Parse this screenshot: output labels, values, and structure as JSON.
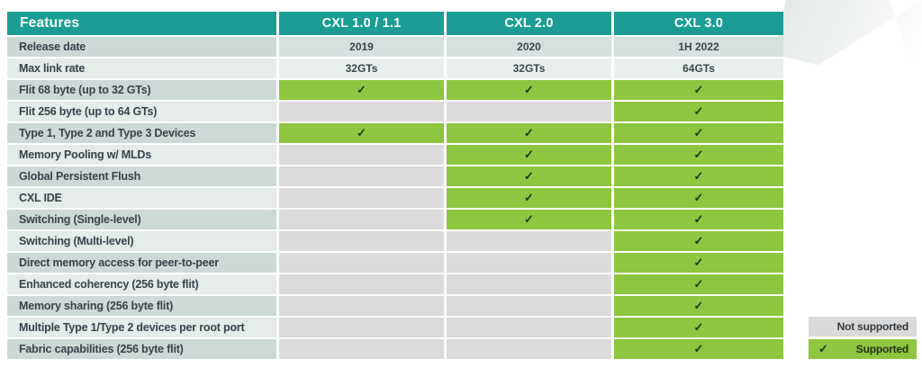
{
  "table": {
    "columns": [
      "Features",
      "CXL 1.0 / 1.1",
      "CXL 2.0",
      "CXL 3.0"
    ],
    "info_rows": [
      {
        "label": "Release date",
        "values": [
          "2019",
          "2020",
          "1H 2022"
        ]
      },
      {
        "label": "Max link rate",
        "values": [
          "32GTs",
          "32GTs",
          "64GTs"
        ]
      }
    ],
    "feature_rows": [
      {
        "label": "Flit 68 byte (up to 32 GTs)",
        "support": [
          true,
          true,
          true
        ]
      },
      {
        "label": "Flit 256 byte (up to 64 GTs)",
        "support": [
          false,
          false,
          true
        ]
      },
      {
        "label": "Type 1, Type 2 and Type 3 Devices",
        "support": [
          true,
          true,
          true
        ]
      },
      {
        "label": "Memory Pooling w/ MLDs",
        "support": [
          false,
          true,
          true
        ]
      },
      {
        "label": "Global Persistent Flush",
        "support": [
          false,
          true,
          true
        ]
      },
      {
        "label": "CXL IDE",
        "support": [
          false,
          true,
          true
        ]
      },
      {
        "label": "Switching (Single-level)",
        "support": [
          false,
          true,
          true
        ]
      },
      {
        "label": "Switching (Multi-level)",
        "support": [
          false,
          false,
          true
        ]
      },
      {
        "label": "Direct memory access for peer-to-peer",
        "support": [
          false,
          false,
          true
        ]
      },
      {
        "label": "Enhanced coherency (256 byte flit)",
        "support": [
          false,
          false,
          true
        ]
      },
      {
        "label": "Memory sharing (256 byte flit)",
        "support": [
          false,
          false,
          true
        ]
      },
      {
        "label": "Multiple Type 1/Type 2 devices per root port",
        "support": [
          false,
          false,
          true
        ]
      },
      {
        "label": "Fabric capabilities (256 byte flit)",
        "support": [
          false,
          false,
          true
        ]
      }
    ]
  },
  "glyphs": {
    "check": "✓"
  },
  "legend": {
    "not_supported": "Not supported",
    "supported": "Supported"
  },
  "colors": {
    "header_teal": "#1b9d95",
    "supported_green": "#8dc63f",
    "not_supported_gray": "#dbdbdb",
    "legend_gray": "#d9d9d9",
    "feature_row_dark": "#ccd9d6",
    "feature_row_light": "#e4ebe9",
    "info_cell_dark": "#d7e0de",
    "info_cell_light": "#e9efed",
    "check_color": "#1e3520",
    "text_dark": "#37424a",
    "header_text": "#ffffff"
  },
  "chart_data": {
    "type": "table",
    "title": "CXL feature comparison",
    "columns": [
      "Features",
      "CXL 1.0 / 1.1",
      "CXL 2.0",
      "CXL 3.0"
    ],
    "rows": [
      [
        "Release date",
        "2019",
        "2020",
        "1H 2022"
      ],
      [
        "Max link rate",
        "32GTs",
        "32GTs",
        "64GTs"
      ],
      [
        "Flit 68 byte (up to 32 GTs)",
        "supported",
        "supported",
        "supported"
      ],
      [
        "Flit 256 byte (up to 64 GTs)",
        "not supported",
        "not supported",
        "supported"
      ],
      [
        "Type 1, Type 2 and Type 3 Devices",
        "supported",
        "supported",
        "supported"
      ],
      [
        "Memory Pooling w/ MLDs",
        "not supported",
        "supported",
        "supported"
      ],
      [
        "Global Persistent Flush",
        "not supported",
        "supported",
        "supported"
      ],
      [
        "CXL IDE",
        "not supported",
        "supported",
        "supported"
      ],
      [
        "Switching (Single-level)",
        "not supported",
        "supported",
        "supported"
      ],
      [
        "Switching (Multi-level)",
        "not supported",
        "not supported",
        "supported"
      ],
      [
        "Direct memory access for peer-to-peer",
        "not supported",
        "not supported",
        "supported"
      ],
      [
        "Enhanced coherency (256 byte flit)",
        "not supported",
        "not supported",
        "supported"
      ],
      [
        "Memory sharing (256 byte flit)",
        "not supported",
        "not supported",
        "supported"
      ],
      [
        "Multiple Type 1/Type 2 devices per root port",
        "not supported",
        "not supported",
        "supported"
      ],
      [
        "Fabric capabilities (256 byte flit)",
        "not supported",
        "not supported",
        "supported"
      ]
    ],
    "legend": [
      "Not supported",
      "Supported"
    ],
    "legend_position": "bottom-right"
  }
}
